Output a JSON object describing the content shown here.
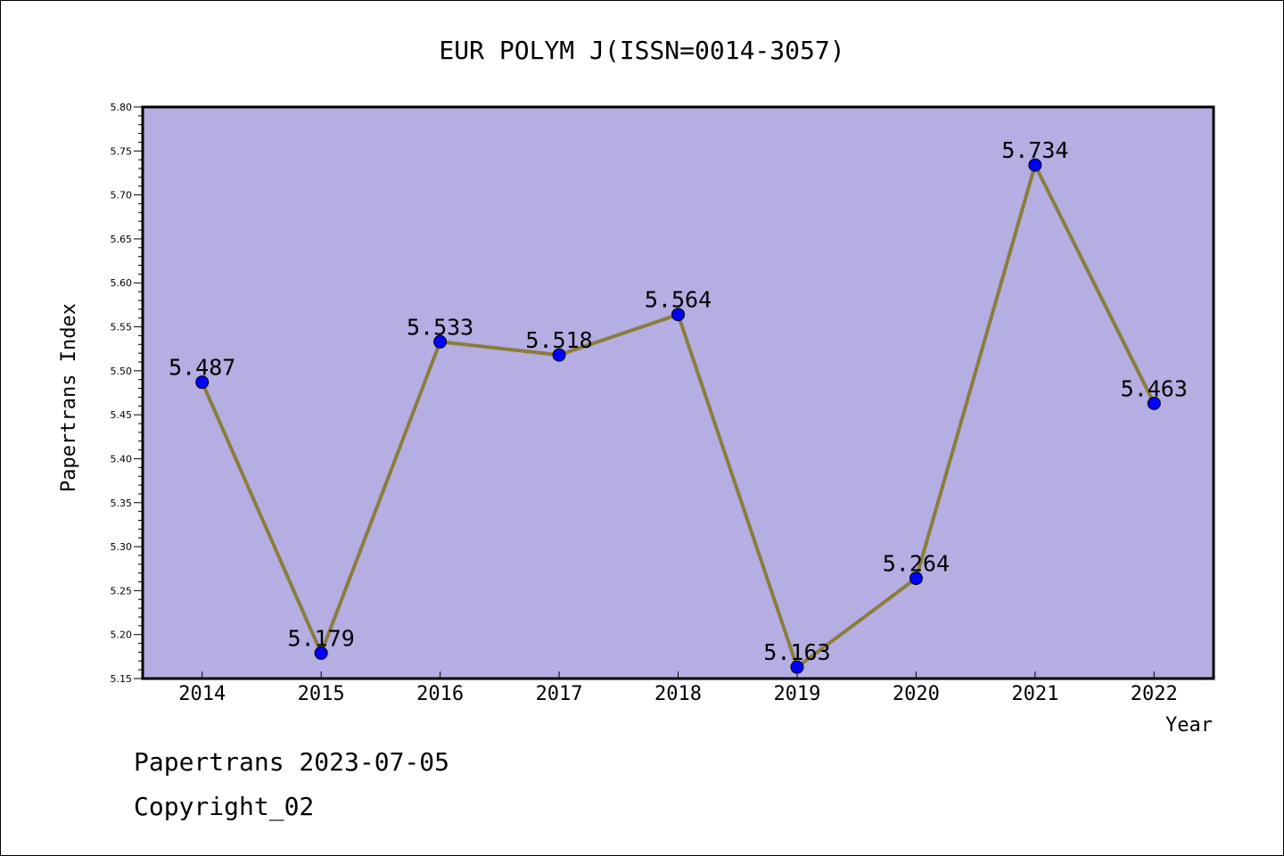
{
  "chart_data": {
    "type": "line",
    "title": "EUR POLYM J(ISSN=0014-3057)",
    "xlabel": "Year",
    "ylabel": "Papertrans Index",
    "categories": [
      "2014",
      "2015",
      "2016",
      "2017",
      "2018",
      "2019",
      "2020",
      "2021",
      "2022"
    ],
    "series": [
      {
        "values": [
          5.487,
          5.179,
          5.533,
          5.518,
          5.564,
          5.163,
          5.264,
          5.734,
          5.463
        ],
        "labels": [
          "5.487",
          "5.179",
          "5.533",
          "5.518",
          "5.564",
          "5.163",
          "5.264",
          "5.734",
          "5.463"
        ]
      }
    ],
    "ylim": [
      5.15,
      5.8
    ],
    "yticks": [
      "5.15",
      "5.20",
      "5.25",
      "5.30",
      "5.35",
      "5.40",
      "5.45",
      "5.50",
      "5.55",
      "5.60",
      "5.65",
      "5.70",
      "5.75",
      "5.80"
    ],
    "grid": false,
    "colors": {
      "plot_background": "#b4aee2",
      "line": "#8c7c3c",
      "marker": "#0000ff"
    }
  },
  "footer": {
    "line1": "Papertrans 2023-07-05",
    "line2": "Copyright_02"
  }
}
